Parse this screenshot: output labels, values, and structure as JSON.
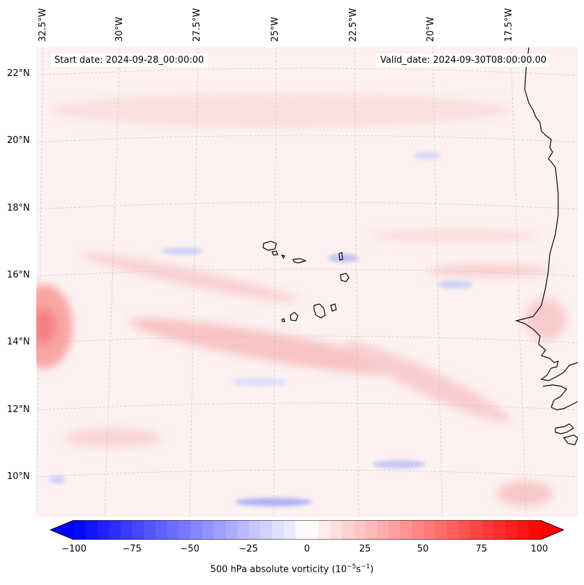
{
  "map": {
    "info_left": "Start date: 2024-09-28_00:00:00",
    "info_right": "Valid_date: 2024-09-30T08:00:00.00",
    "lon_labels": [
      "32.5°W",
      "30°W",
      "27.5°W",
      "25°W",
      "22.5°W",
      "20°W",
      "17.5°W"
    ],
    "lat_labels": [
      "22°N",
      "20°N",
      "18°N",
      "16°N",
      "14°N",
      "12°N",
      "10°N"
    ],
    "background_color": "#fdf3f3",
    "coastline_color": "#000000"
  },
  "colorbar": {
    "tick_labels": [
      "−100",
      "−75",
      "−50",
      "−25",
      "0",
      "25",
      "50",
      "75",
      "100"
    ],
    "min": -100,
    "max": 100,
    "low_color": "#0000ff",
    "high_color": "#ff0000",
    "label_text": "500 hPa absolute vorticity (10",
    "label_exp1": "−5",
    "label_mid": "s",
    "label_exp2": "−1",
    "label_end": ")"
  }
}
